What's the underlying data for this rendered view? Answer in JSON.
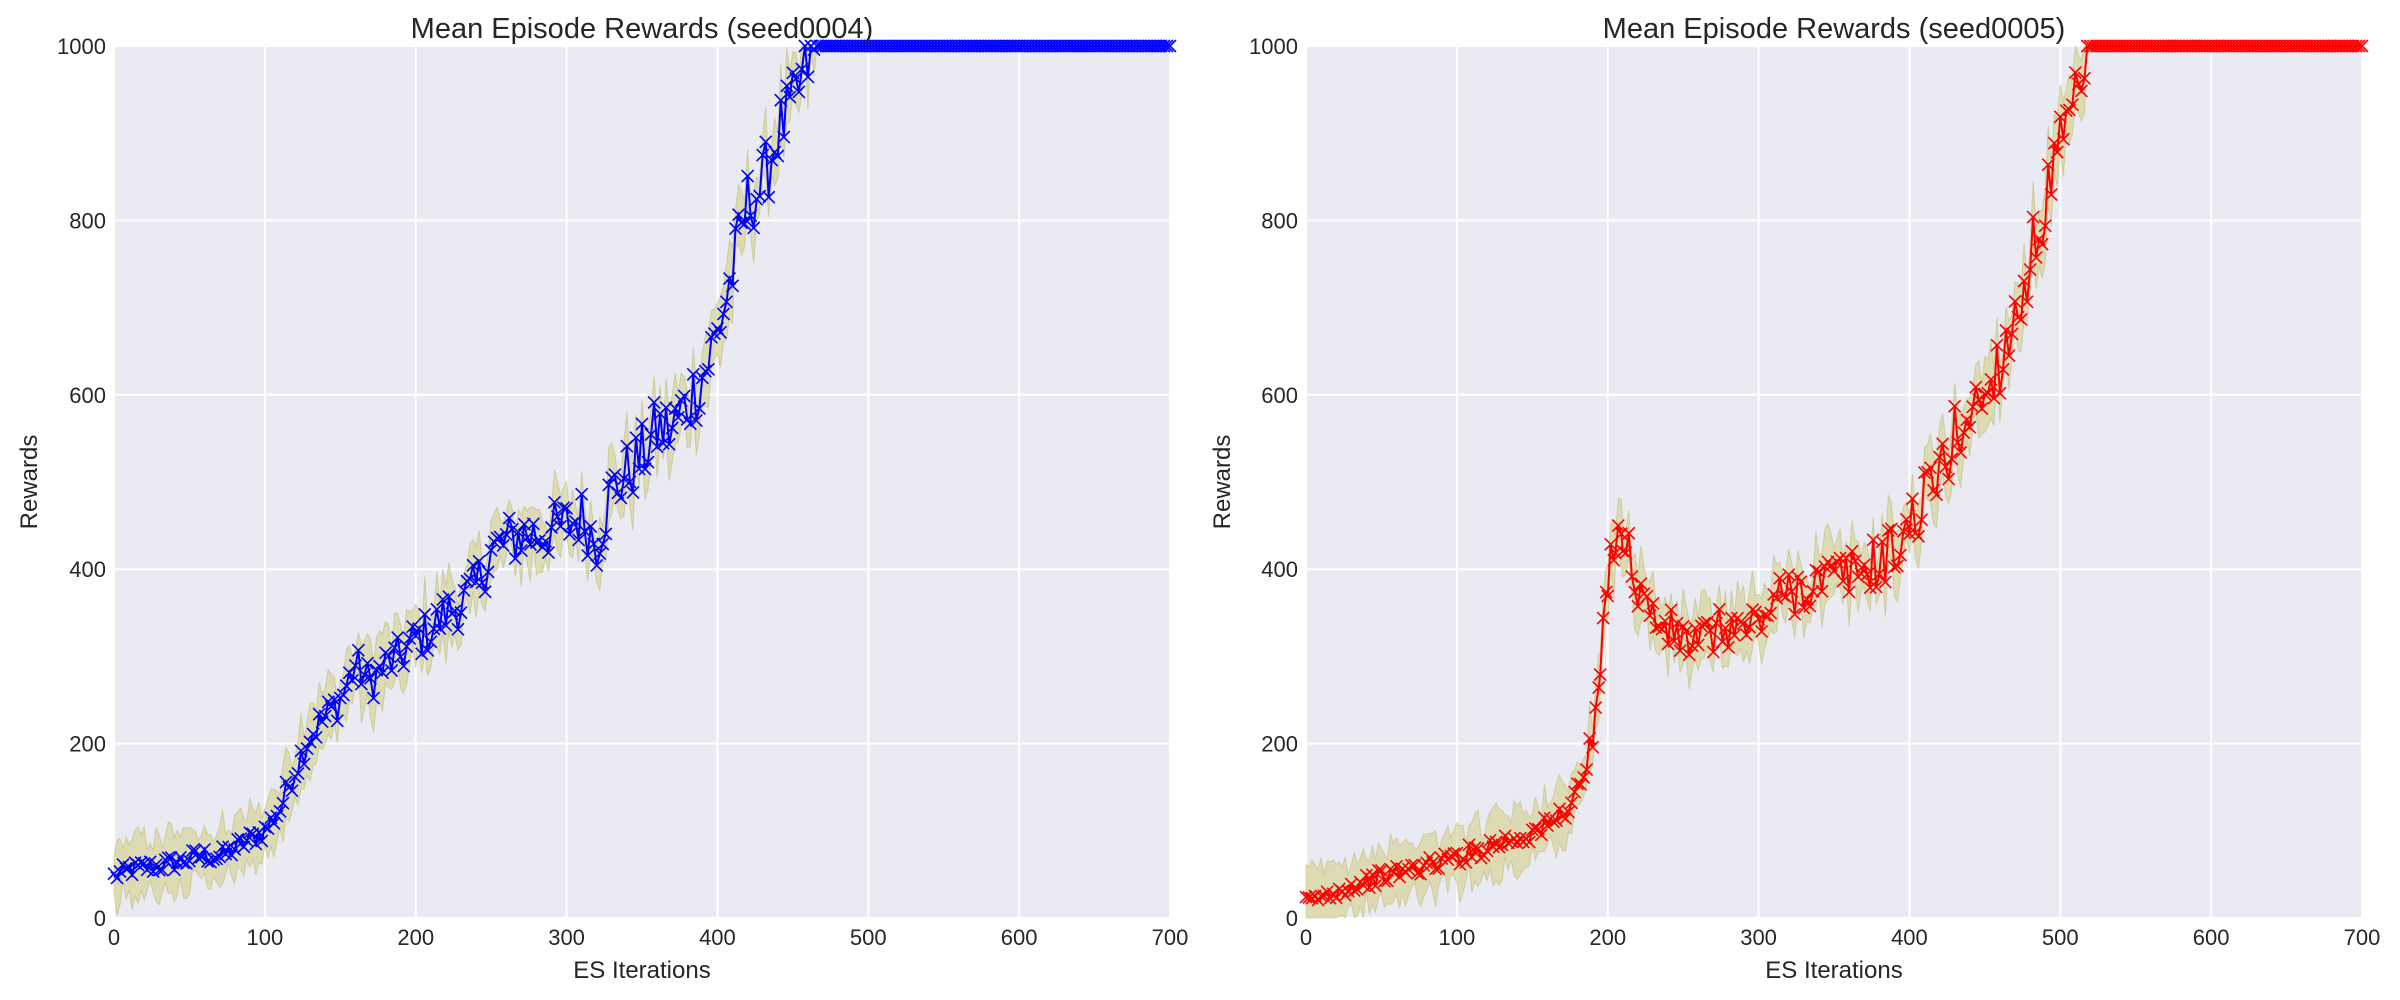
{
  "charts": [
    {
      "title": "Mean Episode Rewards (seed0004)",
      "xlabel": "ES Iterations",
      "ylabel": "Rewards",
      "xticks": [
        "0",
        "100",
        "200",
        "300",
        "400",
        "500",
        "600",
        "700"
      ],
      "yticks": [
        "0",
        "200",
        "400",
        "600",
        "800",
        "1000"
      ]
    },
    {
      "title": "Mean Episode Rewards (seed0005)",
      "xlabel": "ES Iterations",
      "ylabel": "Rewards",
      "yticks": [
        "0",
        "200",
        "400",
        "600",
        "800",
        "1000"
      ],
      "xticks": [
        "0",
        "100",
        "200",
        "300",
        "400",
        "500",
        "600",
        "700"
      ]
    }
  ],
  "chart_data": [
    {
      "type": "line",
      "title": "Mean Episode Rewards (seed0004)",
      "xlabel": "ES Iterations",
      "ylabel": "Rewards",
      "xlim": [
        0,
        700
      ],
      "ylim": [
        0,
        1000
      ],
      "grid": true,
      "marker": "x",
      "line_color": "#0000ff",
      "band_color": "#d4d08a",
      "band_halfwidth": 30,
      "x": [
        0,
        10,
        20,
        30,
        40,
        50,
        60,
        70,
        80,
        90,
        100,
        110,
        120,
        130,
        140,
        150,
        160,
        170,
        180,
        190,
        200,
        210,
        220,
        230,
        240,
        250,
        260,
        270,
        280,
        290,
        300,
        310,
        320,
        330,
        340,
        350,
        360,
        370,
        380,
        390,
        400,
        410,
        420,
        430,
        440,
        450,
        460,
        470,
        480,
        500,
        550,
        600,
        650,
        700
      ],
      "y": [
        48,
        55,
        58,
        60,
        63,
        68,
        72,
        70,
        80,
        90,
        100,
        125,
        170,
        210,
        230,
        250,
        290,
        270,
        290,
        300,
        320,
        330,
        350,
        360,
        380,
        420,
        430,
        440,
        440,
        445,
        450,
        460,
        430,
        490,
        510,
        530,
        560,
        560,
        590,
        620,
        670,
        740,
        820,
        840,
        900,
        930,
        980,
        1000,
        1000,
        1000,
        1000,
        1000,
        1000,
        1000
      ]
    },
    {
      "type": "line",
      "title": "Mean Episode Rewards (seed0005)",
      "xlabel": "ES Iterations",
      "ylabel": "Rewards",
      "xlim": [
        0,
        700
      ],
      "ylim": [
        0,
        1000
      ],
      "grid": true,
      "marker": "x",
      "line_color": "#ff0000",
      "band_color": "#d4d08a",
      "band_halfwidth": 30,
      "x": [
        0,
        10,
        20,
        30,
        40,
        50,
        60,
        70,
        80,
        90,
        100,
        110,
        120,
        130,
        140,
        150,
        160,
        170,
        180,
        190,
        195,
        200,
        205,
        210,
        220,
        230,
        240,
        250,
        260,
        270,
        280,
        290,
        300,
        310,
        320,
        330,
        340,
        350,
        360,
        370,
        380,
        390,
        400,
        410,
        420,
        430,
        440,
        450,
        460,
        470,
        480,
        490,
        500,
        510,
        520,
        550,
        600,
        650,
        700
      ],
      "y": [
        18,
        24,
        30,
        36,
        42,
        47,
        52,
        56,
        60,
        65,
        70,
        75,
        82,
        88,
        92,
        98,
        105,
        120,
        145,
        200,
        280,
        380,
        450,
        440,
        380,
        345,
        330,
        320,
        315,
        325,
        335,
        330,
        340,
        360,
        375,
        380,
        385,
        390,
        395,
        400,
        410,
        420,
        450,
        480,
        510,
        550,
        580,
        600,
        640,
        690,
        750,
        820,
        880,
        930,
        1000,
        1000,
        1000,
        1000,
        1000
      ]
    }
  ]
}
